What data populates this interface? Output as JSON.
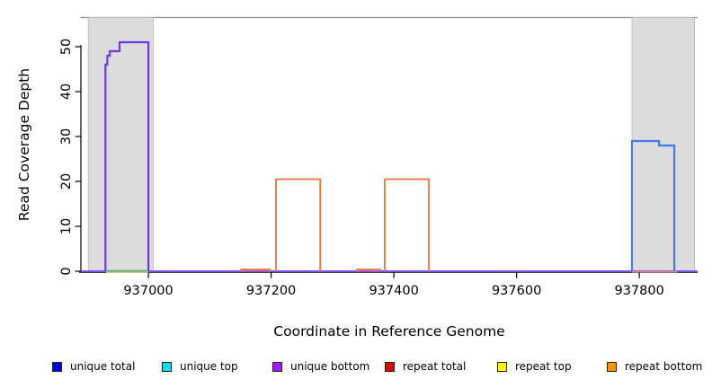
{
  "figure": {
    "title": "",
    "x_axis_label": "Coordinate in Reference Genome",
    "y_axis_label": "Read Coverage Depth"
  },
  "chart_data": {
    "type": "line",
    "title": "",
    "xlabel": "Coordinate in Reference Genome",
    "ylabel": "Read Coverage Depth",
    "xlim": [
      936890,
      937895
    ],
    "ylim": [
      0,
      56.5
    ],
    "x_ticks": [
      937000,
      937200,
      937400,
      937600,
      937800
    ],
    "y_ticks": [
      0,
      10,
      20,
      30,
      40,
      50
    ],
    "grid": false,
    "top_reference_line_y": 56.5,
    "axis_color": "#000000",
    "reference_line_color": "#909090",
    "shaded_regions": [
      {
        "name": "left-shaded-region",
        "x_start": 936902,
        "x_end": 937008,
        "fill": "#dcdcdc",
        "border": "#b8b8b8"
      },
      {
        "name": "right-shaded-region",
        "x_start": 937788,
        "x_end": 937890,
        "fill": "#dcdcdc",
        "border": "#b8b8b8"
      }
    ],
    "series": [
      {
        "name": "unique-baseline",
        "color": "#7a52ea",
        "width": 2,
        "points": [
          [
            936890,
            0
          ],
          [
            937895,
            0
          ]
        ]
      },
      {
        "name": "repeat-total-right-zero-line",
        "color": "#ef8090",
        "width": 1.6,
        "points": [
          [
            937788,
            -0.12
          ],
          [
            937862,
            -0.12
          ]
        ]
      },
      {
        "name": "repeat-top-left-zero-line",
        "color": "#dde28c",
        "width": 1.2,
        "points": [
          [
            936931,
            -0.22
          ],
          [
            937000,
            -0.22
          ]
        ]
      },
      {
        "name": "unique-top-left-zero-line",
        "color": "#55b95f",
        "width": 1.6,
        "points": [
          [
            936931,
            0.12
          ],
          [
            937000,
            0.12
          ]
        ]
      },
      {
        "name": "repeat-total-bump-1",
        "color": "#ef8090",
        "width": 1.6,
        "points": [
          [
            937151,
            0.25
          ],
          [
            937198,
            0.25
          ]
        ]
      },
      {
        "name": "repeat-total-bump-2",
        "color": "#ef8090",
        "width": 1.6,
        "points": [
          [
            937340,
            0.25
          ],
          [
            937378,
            0.25
          ]
        ]
      },
      {
        "name": "repeat-bottom-bump-1",
        "color": "#f4713a",
        "width": 1.8,
        "points": [
          [
            937151,
            0
          ],
          [
            937151,
            0.4
          ],
          [
            937198,
            0.4
          ],
          [
            937198,
            0
          ]
        ]
      },
      {
        "name": "repeat-bottom-bump-2",
        "color": "#f4713a",
        "width": 1.8,
        "points": [
          [
            937340,
            0
          ],
          [
            937340,
            0.4
          ],
          [
            937378,
            0.4
          ],
          [
            937378,
            0
          ]
        ]
      },
      {
        "name": "repeat-bottom-block-1",
        "color": "#f4713a",
        "width": 1.8,
        "points": [
          [
            937208,
            0
          ],
          [
            937208,
            20.5
          ],
          [
            937280,
            20.5
          ],
          [
            937280,
            0
          ]
        ]
      },
      {
        "name": "repeat-bottom-block-2",
        "color": "#f4713a",
        "width": 1.8,
        "points": [
          [
            937385,
            0
          ],
          [
            937385,
            20.5
          ],
          [
            937457,
            20.5
          ],
          [
            937457,
            0
          ]
        ]
      },
      {
        "name": "unique-left-block",
        "color": "#7038e4",
        "width": 2.2,
        "points": [
          [
            936930,
            0
          ],
          [
            936930,
            46
          ],
          [
            936933,
            46
          ],
          [
            936933,
            48
          ],
          [
            936937,
            48
          ],
          [
            936937,
            49
          ],
          [
            936953,
            49
          ],
          [
            936953,
            51
          ],
          [
            937000,
            51
          ],
          [
            937000,
            0
          ]
        ]
      },
      {
        "name": "unique-right-block",
        "color": "#3f7af0",
        "width": 2.2,
        "points": [
          [
            937788,
            0
          ],
          [
            937788,
            29
          ],
          [
            937832,
            29
          ],
          [
            937832,
            28
          ],
          [
            937857,
            28
          ],
          [
            937857,
            0
          ]
        ]
      }
    ],
    "legend": {
      "position": "bottom",
      "entries": [
        {
          "label": "unique total",
          "color": "#0000ee"
        },
        {
          "label": "unique top",
          "color": "#00e5ee"
        },
        {
          "label": "unique bottom",
          "color": "#a020f0"
        },
        {
          "label": "repeat total",
          "color": "#e60000"
        },
        {
          "label": "repeat top",
          "color": "#ffff00"
        },
        {
          "label": "repeat bottom",
          "color": "#f59300"
        }
      ]
    }
  }
}
